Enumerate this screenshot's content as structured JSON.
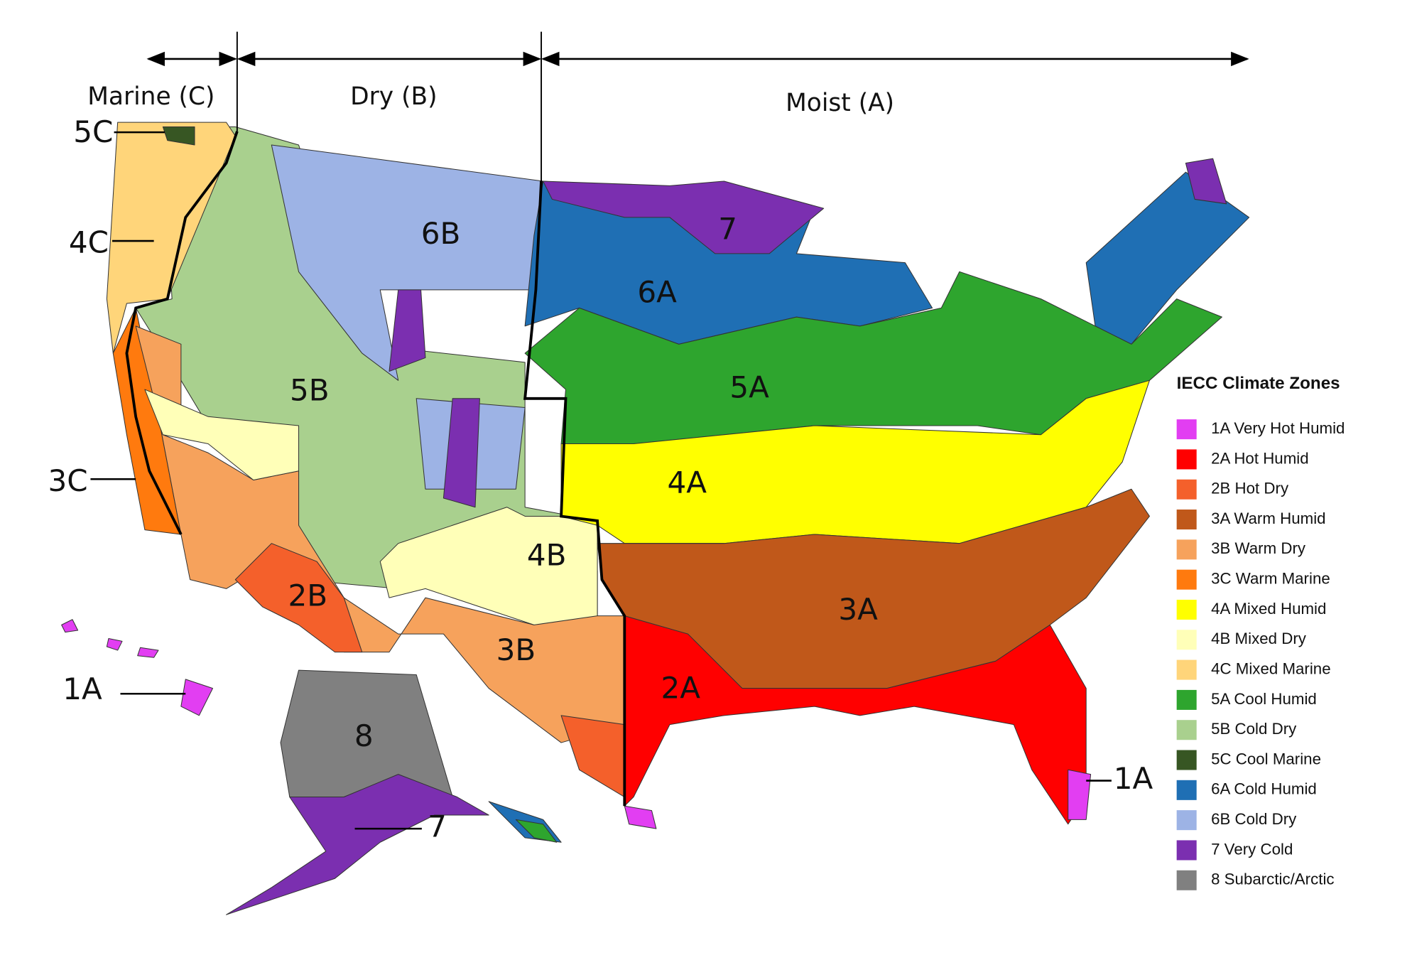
{
  "regimes": [
    "Marine (C)",
    "Dry (B)",
    "Moist (A)"
  ],
  "map_labels": [
    "5C",
    "4C",
    "3C",
    "1A",
    "6B",
    "5B",
    "2B",
    "4B",
    "3B",
    "8",
    "7",
    "7",
    "6A",
    "5A",
    "4A",
    "3A",
    "2A",
    "1A"
  ],
  "legend": {
    "title": "IECC Climate Zones",
    "items": [
      {
        "label": "1A Very Hot Humid",
        "color": "#e23ef2"
      },
      {
        "label": "2A Hot Humid",
        "color": "#ff0000"
      },
      {
        "label": "2B Hot Dry",
        "color": "#f4602b"
      },
      {
        "label": "3A Warm Humid",
        "color": "#c0581a"
      },
      {
        "label": "3B Warm Dry",
        "color": "#f6a25c"
      },
      {
        "label": "3C Warm Marine",
        "color": "#ff7a0e"
      },
      {
        "label": "4A Mixed Humid",
        "color": "#ffff00"
      },
      {
        "label": "4B Mixed Dry",
        "color": "#ffffb8"
      },
      {
        "label": "4C Mixed Marine",
        "color": "#ffd57a"
      },
      {
        "label": "5A Cool Humid",
        "color": "#2ea52e"
      },
      {
        "label": "5B Cold Dry",
        "color": "#a9d08e"
      },
      {
        "label": "5C Cool Marine",
        "color": "#375623"
      },
      {
        "label": "6A Cold Humid",
        "color": "#1f6fb4"
      },
      {
        "label": "6B Cold Dry",
        "color": "#9db3e5"
      },
      {
        "label": "7 Very Cold",
        "color": "#7b2fb0"
      },
      {
        "label": "8 Subarctic/Arctic",
        "color": "#808080"
      }
    ]
  }
}
